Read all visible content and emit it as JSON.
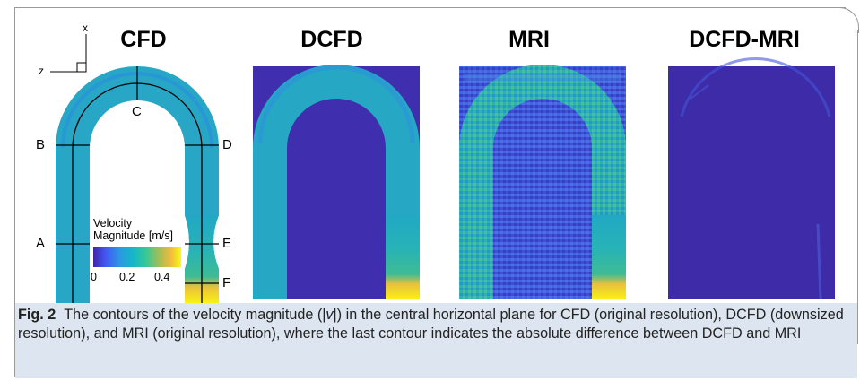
{
  "panels": [
    {
      "title": "CFD"
    },
    {
      "title": "DCFD"
    },
    {
      "title": "MRI"
    },
    {
      "title": "DCFD-MRI"
    }
  ],
  "axes": {
    "x_label": "x",
    "z_label": "z"
  },
  "section_labels": [
    "A",
    "B",
    "C",
    "D",
    "E",
    "F"
  ],
  "colorbar": {
    "title_line1": "Velocity",
    "title_line2": "Magnitude [m/s]",
    "ticks": [
      "0",
      "0.2",
      "0.4"
    ],
    "colors": [
      "#3e26a8",
      "#4257f2",
      "#2c98e3",
      "#14b7c8",
      "#37c896",
      "#a4be56",
      "#f0ba3c",
      "#f9fb15"
    ]
  },
  "caption": {
    "label": "Fig. 2",
    "text_1": "The contours of the velocity magnitude (|",
    "v": "v",
    "text_2": "|) in the central horizontal plane for CFD (original resolution), DCFD (downsized resolution), and MRI (original resolution), where the last contour indicates the absolute difference between DCFD and MRI"
  }
}
